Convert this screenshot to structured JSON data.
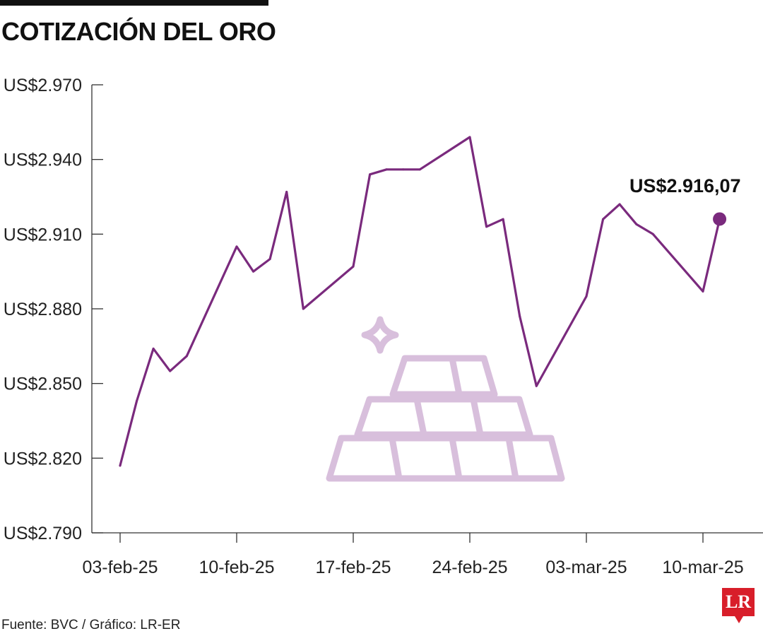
{
  "header": {
    "title": "COTIZACIÓN DEL ORO"
  },
  "footer": {
    "source": "Fuente: BVC / Gráfico: LR-ER",
    "logo_text": "LR"
  },
  "colors": {
    "line": "#7a2a7d",
    "bars": "#d8bfdc",
    "axis": "#333333"
  },
  "icon": "gold-bars-icon",
  "chart_data": {
    "type": "line",
    "title": "COTIZACIÓN DEL ORO",
    "xlabel": "",
    "ylabel": "",
    "ylim": [
      2790,
      2970
    ],
    "yticks": [
      "US$2.970",
      "US$2.940",
      "US$2.910",
      "US$2.880",
      "US$2.850",
      "US$2.820",
      "US$2.790"
    ],
    "ytick_values": [
      2970,
      2940,
      2910,
      2880,
      2850,
      2820,
      2790
    ],
    "xticks": [
      "03-feb-25",
      "10-feb-25",
      "17-feb-25",
      "24-feb-25",
      "03-mar-25",
      "10-mar-25"
    ],
    "xtick_values": [
      "2025-02-03",
      "2025-02-10",
      "2025-02-17",
      "2025-02-24",
      "2025-03-03",
      "2025-03-10"
    ],
    "grid": false,
    "x": [
      "2025-02-03",
      "2025-02-04",
      "2025-02-05",
      "2025-02-06",
      "2025-02-07",
      "2025-02-10",
      "2025-02-11",
      "2025-02-12",
      "2025-02-13",
      "2025-02-14",
      "2025-02-17",
      "2025-02-18",
      "2025-02-19",
      "2025-02-20",
      "2025-02-21",
      "2025-02-24",
      "2025-02-25",
      "2025-02-26",
      "2025-02-27",
      "2025-02-28",
      "2025-03-03",
      "2025-03-04",
      "2025-03-05",
      "2025-03-06",
      "2025-03-07",
      "2025-03-10",
      "2025-03-11"
    ],
    "values": [
      2817,
      2843,
      2864,
      2855,
      2861,
      2905,
      2895,
      2900,
      2927,
      2880,
      2897,
      2934,
      2936,
      2936,
      2936,
      2949,
      2913,
      2916,
      2877,
      2849,
      2885,
      2916,
      2922,
      2914,
      2910,
      2887,
      2916.07
    ],
    "annotation": {
      "label": "US$2.916,07",
      "x": "2025-03-11",
      "y": 2916.07
    }
  }
}
